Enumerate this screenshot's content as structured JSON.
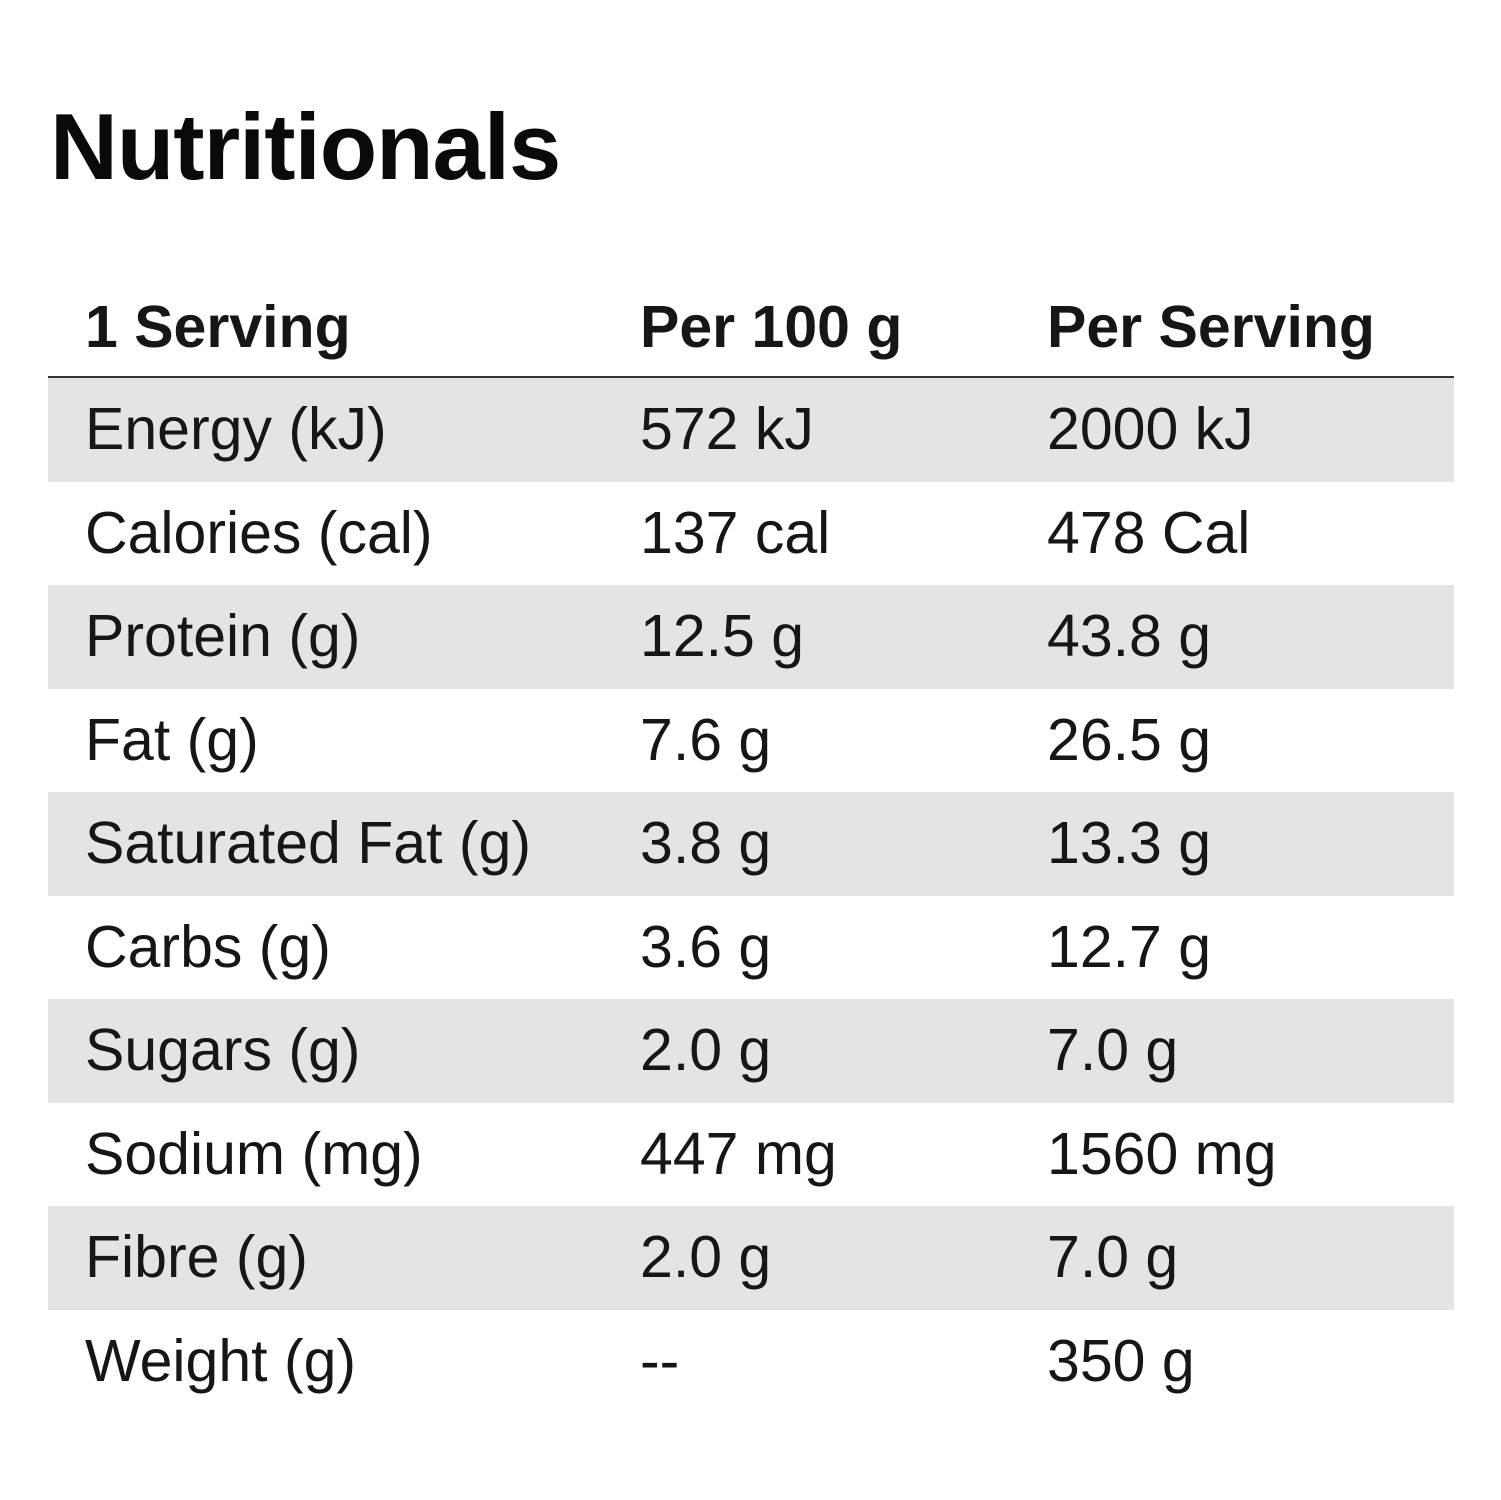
{
  "title": "Nutritionals",
  "table": {
    "headers": [
      "1 Serving",
      "Per 100 g",
      "Per Serving"
    ],
    "rows": [
      {
        "label": "Energy (kJ)",
        "per100": "572 kJ",
        "serving": "2000 kJ"
      },
      {
        "label": "Calories (cal)",
        "per100": "137 cal",
        "serving": "478 Cal"
      },
      {
        "label": "Protein (g)",
        "per100": "12.5 g",
        "serving": "43.8 g"
      },
      {
        "label": "Fat (g)",
        "per100": "7.6 g",
        "serving": "26.5 g"
      },
      {
        "label": "Saturated Fat (g)",
        "per100": "3.8 g",
        "serving": "13.3 g"
      },
      {
        "label": "Carbs (g)",
        "per100": "3.6 g",
        "serving": "12.7 g"
      },
      {
        "label": "Sugars (g)",
        "per100": "2.0 g",
        "serving": "7.0 g"
      },
      {
        "label": "Sodium (mg)",
        "per100": "447 mg",
        "serving": "1560 mg"
      },
      {
        "label": "Fibre (g)",
        "per100": "2.0 g",
        "serving": "7.0 g"
      },
      {
        "label": "Weight (g)",
        "per100": "--",
        "serving": "350 g"
      }
    ]
  },
  "colors": {
    "shaded_row": "#e4e4e4",
    "text": "#161616",
    "divider": "#333333"
  }
}
